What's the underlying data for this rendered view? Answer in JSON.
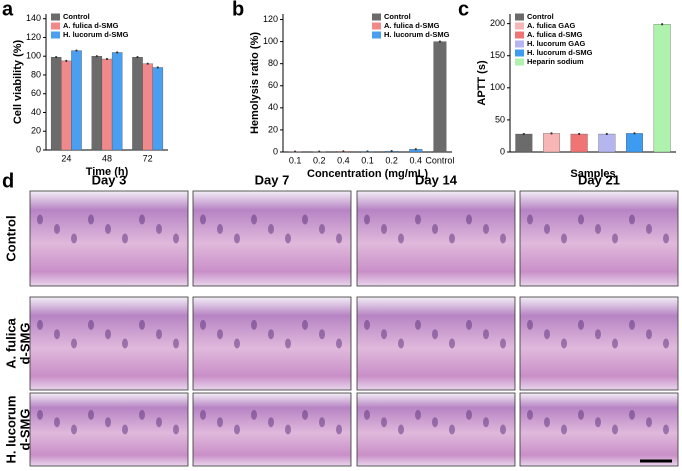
{
  "chart_data": [
    {
      "type": "bar",
      "panel": "a",
      "x_label": "Time (h)",
      "y_label": "Cell viability (%)",
      "categories": [
        "24",
        "48",
        "72"
      ],
      "ylim": [
        0,
        145
      ],
      "yticks": [
        0,
        20,
        40,
        60,
        80,
        100,
        120,
        140
      ],
      "legend": "upper left",
      "series": [
        {
          "name": "Control",
          "color": "#6b6b6b",
          "values": [
            99,
            100,
            99
          ]
        },
        {
          "name": "A. fulica d-SMG",
          "color": "#f08a8a",
          "values": [
            95,
            97,
            92
          ]
        },
        {
          "name": "H. lucorum d-SMG",
          "color": "#4a9ff0",
          "values": [
            106,
            104,
            88
          ]
        }
      ]
    },
    {
      "type": "bar",
      "panel": "b",
      "x_label": "Concentration (mg/mL)",
      "y_label": "Hemolysis ratio (%)",
      "categories": [
        "0.1",
        "0.2",
        "0.4",
        "0.1",
        "0.2",
        "0.4",
        "Control"
      ],
      "ylim": [
        0,
        125
      ],
      "yticks": [
        0,
        20,
        40,
        60,
        80,
        100,
        120
      ],
      "legend": "upper right",
      "series": [
        {
          "name": "Control",
          "color": "#6b6b6b",
          "values": [
            null,
            null,
            null,
            null,
            null,
            null,
            100
          ]
        },
        {
          "name": "A. fulica d-SMG",
          "color": "#f08a8a",
          "values": [
            0.4,
            0.4,
            0.6,
            null,
            null,
            null,
            null
          ]
        },
        {
          "name": "H. lucorum d-SMG",
          "color": "#4a9ff0",
          "values": [
            null,
            null,
            null,
            0.5,
            0.8,
            2.5,
            null
          ]
        }
      ]
    },
    {
      "type": "bar",
      "panel": "c",
      "x_label": "Samples",
      "y_label": "APTT (s)",
      "ylim": [
        0,
        215
      ],
      "yticks": [
        0,
        50,
        100,
        150,
        200
      ],
      "legend": "upper left",
      "series": [
        {
          "name": "Control",
          "color": "#6b6b6b",
          "values": [
            28
          ]
        },
        {
          "name": "A. fulica GAG",
          "color": "#f7b5b5",
          "values": [
            29
          ]
        },
        {
          "name": "A. fulica d-SMG",
          "color": "#f07474",
          "values": [
            28
          ]
        },
        {
          "name": "H. lucorum GAG",
          "color": "#b5b5f0",
          "values": [
            28
          ]
        },
        {
          "name": "H. lucorum d-SMG",
          "color": "#3d9bf2",
          "values": [
            29
          ]
        },
        {
          "name": "Heparin sodium",
          "color": "#aef2ae",
          "values": [
            199
          ]
        }
      ]
    }
  ],
  "histology": {
    "panel": "d",
    "columns": [
      "Day 3",
      "Day 7",
      "Day 14",
      "Day 21"
    ],
    "rows": [
      [
        "Control"
      ],
      [
        "A. fulica",
        "d-SMG"
      ],
      [
        "H. lucorum",
        "d-SMG"
      ]
    ]
  }
}
